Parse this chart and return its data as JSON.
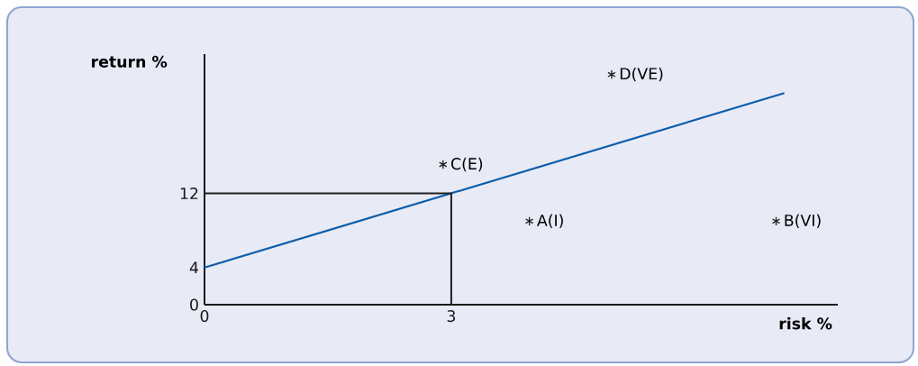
{
  "chart_data": {
    "type": "line",
    "xlabel": "risk %",
    "ylabel": "return %",
    "xlim": [
      0,
      7.7
    ],
    "ylim": [
      0,
      27
    ],
    "xticks": [
      0,
      3
    ],
    "yticks": [
      0,
      4,
      12
    ],
    "series": [
      {
        "color": "#0b5cad",
        "x": [
          0,
          7.05
        ],
        "values": [
          4,
          22.8
        ]
      },
      {
        "color": "#231f20",
        "x": [
          0,
          3,
          3
        ],
        "values": [
          12,
          12,
          0
        ]
      },
      {
        "type": "scatter",
        "marker": "cross",
        "color": "#231f20",
        "x": [
          2.9,
          3.95,
          6.95,
          4.95
        ],
        "values": [
          15.1,
          9,
          9,
          24.8
        ]
      }
    ],
    "annotations": [
      {
        "text": "C(E)",
        "x": 2.9,
        "y": 15.1
      },
      {
        "text": "A(I)",
        "x": 3.95,
        "y": 9
      },
      {
        "text": "B(VI)",
        "x": 6.95,
        "y": 9
      },
      {
        "text": "D(VE)",
        "x": 4.95,
        "y": 24.8
      }
    ]
  }
}
